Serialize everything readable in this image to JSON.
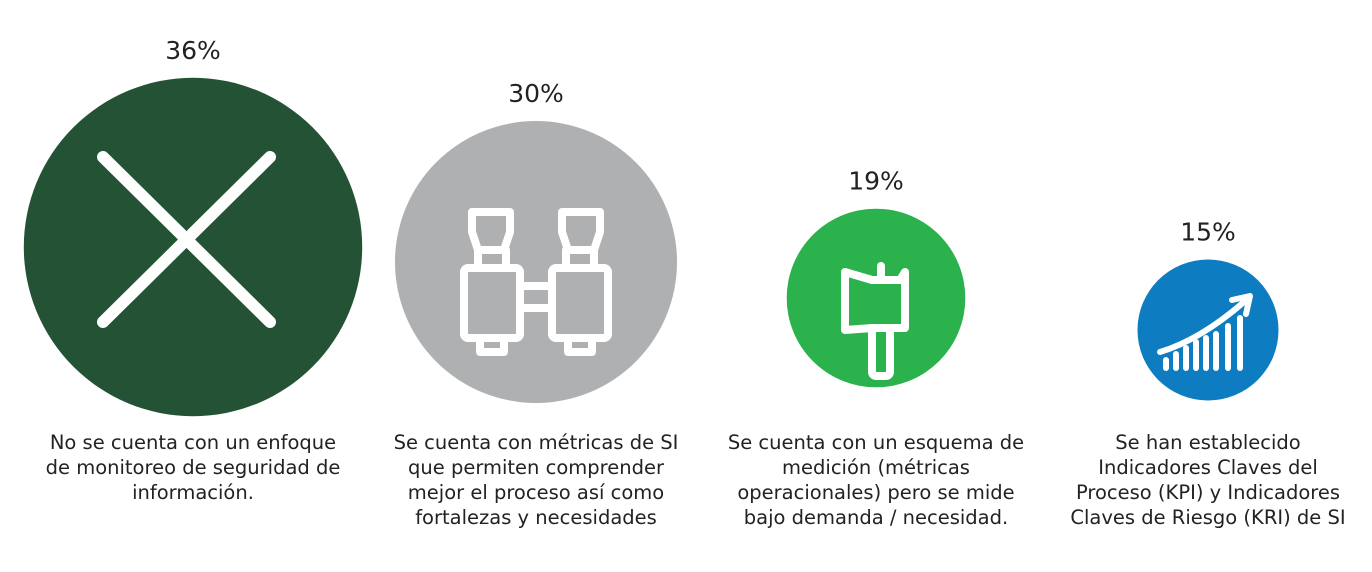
{
  "chart_data": {
    "type": "bubble",
    "categories": [
      "No se cuenta con un enfoque de monitoreo de seguridad de información.",
      "Se cuenta con métricas de SI que permiten comprender mejor el proceso así como fortalezas y necesidades",
      "Se cuenta con un esquema de medición (métricas operacionales) pero se mide bajo demanda / necesidad.",
      "Se han establecido Indicadores Claves del Proceso (KPI) y Indicadores Claves de Riesgo (KRI) de SI"
    ],
    "values": [
      36,
      30,
      19,
      15
    ],
    "value_labels": [
      "36%",
      "30%",
      "19%",
      "15%"
    ],
    "colors": [
      "#245234",
      "#aeb0b1",
      "#2bb24c",
      "#0e7cc0"
    ]
  }
}
